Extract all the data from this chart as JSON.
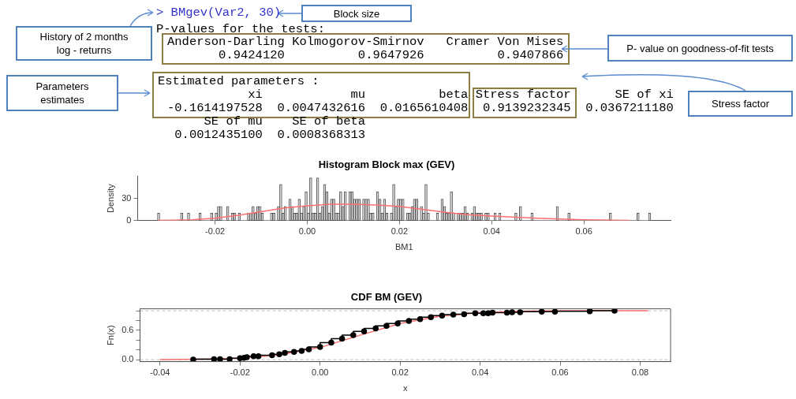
{
  "chart_data": [
    {
      "type": "other",
      "annotations": [
        "> BMgev(Var2, 30)",
        "P-values for the tests:",
        "Anderson-Darling Kolmogorov-Smirnov   Cramer Von Mises",
        "       0.9424120          0.9647926          0.9407866",
        "Estimated parameters :",
        "           xi            mu          beta Stress factor      SE of xi",
        "-0.1614197528  0.0047432616  0.0165610408  0.9139232345  0.0367211180",
        "     SE of mu    SE of beta",
        " 0.0012435100  0.0008368313",
        "Block size",
        "History of 2 months log - returns",
        "P- value on goodness-of-fit tests",
        "Parameters estimates",
        "Stress factor"
      ]
    },
    {
      "type": "histogram",
      "title": "Histogram Block max (GEV)",
      "xlabel": "BM1",
      "ylabel": "Density",
      "color": "#d9d9d9",
      "xlim": [
        -0.0368,
        0.0788
      ],
      "xticks": [
        -0.02,
        {
          "value": 0,
          "label": "0.00"
        },
        0.02,
        0.04,
        0.06
      ],
      "ylim": [
        0,
        60
      ],
      "yticks": [
        0,
        30
      ],
      "bins": [
        -0.0325,
        -0.032,
        -0.0315,
        -0.031,
        -0.0305,
        -0.03,
        -0.0295,
        -0.029,
        -0.0285,
        -0.028,
        -0.0275,
        -0.027,
        -0.0265,
        -0.026,
        -0.0255,
        -0.025,
        -0.0245,
        -0.024,
        -0.0235,
        -0.023,
        -0.0225,
        -0.022,
        -0.0215,
        -0.021,
        -0.0205,
        -0.02,
        -0.0195,
        -0.019,
        -0.0185,
        -0.018,
        -0.0175,
        -0.017,
        -0.0165,
        -0.016,
        -0.0155,
        -0.015,
        -0.0145,
        -0.014,
        -0.0135,
        -0.013,
        -0.0125,
        -0.012,
        -0.0115,
        -0.011,
        -0.0105,
        -0.01,
        -0.0095,
        -0.009,
        -0.0085,
        -0.008,
        -0.0075,
        -0.007,
        -0.0065,
        -0.006,
        -0.0055,
        -0.005,
        -0.0045,
        -0.004,
        -0.0035,
        -0.003,
        -0.0025,
        -0.002,
        -0.0015,
        -0.001,
        -0.0005,
        0,
        0.0005,
        0.001,
        0.0015,
        0.002,
        0.0025,
        0.003,
        0.0035,
        0.004,
        0.0045,
        0.005,
        0.0055,
        0.006,
        0.0065,
        0.007,
        0.0075,
        0.008,
        0.0085,
        0.009,
        0.0095,
        0.01,
        0.0105,
        0.011,
        0.0115,
        0.012,
        0.0125,
        0.013,
        0.0135,
        0.014,
        0.0145,
        0.015,
        0.0155,
        0.016,
        0.0165,
        0.017,
        0.0175,
        0.018,
        0.0185,
        0.019,
        0.0195,
        0.02,
        0.0205,
        0.021,
        0.0215,
        0.022,
        0.0225,
        0.023,
        0.0235,
        0.024,
        0.0245,
        0.025,
        0.0255,
        0.026,
        0.0265,
        0.027,
        0.0275,
        0.028,
        0.0285,
        0.029,
        0.0295,
        0.03,
        0.0305,
        0.031,
        0.0315,
        0.032,
        0.0325,
        0.033,
        0.0335,
        0.034,
        0.0345,
        0.035,
        0.0355,
        0.036,
        0.0365,
        0.037,
        0.0375,
        0.038,
        0.0385,
        0.039,
        0.0395,
        0.04,
        0.0405,
        0.041,
        0.0415,
        0.042,
        0.0425,
        0.043,
        0.0435,
        0.044,
        0.0445,
        0.045,
        0.0455,
        0.046,
        0.0465,
        0.047,
        0.0475,
        0.048,
        0.0485,
        0.049,
        0.0495,
        0.05,
        0.0505,
        0.051,
        0.0515,
        0.052,
        0.0525,
        0.053,
        0.0535,
        0.054,
        0.0545,
        0.055,
        0.0555,
        0.056,
        0.0565,
        0.057,
        0.0575,
        0.058,
        0.0585,
        0.059,
        0.0595,
        0.06,
        0.0605,
        0.061,
        0.0615,
        0.062,
        0.0625,
        0.063,
        0.0635,
        0.064,
        0.0645,
        0.065,
        0.0655,
        0.066,
        0.0665,
        0.067,
        0.0675,
        0.068,
        0.0685,
        0.069,
        0.0695,
        0.07,
        0.0705,
        0.071,
        0.0715,
        0.072,
        0.0725,
        0.073,
        0.0735,
        0.074,
        0.0745
      ],
      "values": [
        10,
        0,
        0,
        0,
        0,
        0,
        0,
        0,
        0,
        0,
        10,
        0,
        0,
        10,
        0,
        0,
        0,
        0,
        10,
        0,
        0,
        0,
        0,
        10,
        0,
        10,
        19,
        19,
        0,
        0,
        19,
        0,
        10,
        10,
        0,
        10,
        0,
        0,
        0,
        10,
        10,
        19,
        10,
        19,
        19,
        10,
        0,
        0,
        0,
        10,
        10,
        0,
        19,
        49,
        10,
        19,
        0,
        29,
        19,
        10,
        10,
        29,
        10,
        19,
        39,
        10,
        58,
        10,
        10,
        58,
        10,
        19,
        49,
        39,
        10,
        29,
        29,
        10,
        10,
        39,
        19,
        39,
        0,
        39,
        39,
        29,
        29,
        29,
        0,
        29,
        29,
        29,
        10,
        10,
        0,
        39,
        29,
        10,
        29,
        10,
        0,
        10,
        49,
        19,
        29,
        29,
        29,
        0,
        10,
        10,
        19,
        29,
        29,
        0,
        19,
        10,
        49,
        10,
        0,
        0,
        0,
        10,
        0,
        29,
        19,
        10,
        10,
        39,
        10,
        0,
        10,
        10,
        10,
        19,
        10,
        0,
        10,
        19,
        10,
        10,
        10,
        0,
        10,
        10,
        0,
        0,
        10,
        0,
        10,
        0,
        0,
        0,
        0,
        0,
        0,
        10,
        0,
        19,
        0,
        0,
        0,
        0,
        10,
        0,
        0,
        0,
        0,
        0,
        0,
        0,
        0,
        0,
        0,
        19,
        0,
        0,
        0,
        0,
        10,
        0,
        0,
        0,
        0,
        0,
        0,
        0,
        0,
        0,
        0,
        0,
        0,
        0,
        0,
        0,
        0,
        0,
        10,
        0,
        0,
        0,
        0,
        0,
        0,
        0,
        0,
        0,
        0,
        0,
        10,
        0,
        0,
        0,
        0,
        10
      ],
      "series": [
        {
          "type": "line",
          "color": "#ff7070",
          "x": [
            -0.0325,
            -0.025,
            -0.02,
            -0.015,
            -0.01,
            -0.005,
            0,
            0.005,
            0.01,
            0.015,
            0.02,
            0.025,
            0.03,
            0.035,
            0.04,
            0.05,
            0.06,
            0.07
          ],
          "values": [
            0,
            1,
            3,
            7,
            12,
            17,
            20,
            22,
            22,
            21,
            19,
            15,
            11,
            8,
            6,
            3,
            1,
            0
          ]
        }
      ]
    },
    {
      "type": "step",
      "title": "CDF BM (GEV)",
      "xlabel": "x",
      "ylabel": "Fn(x)",
      "xlim": [
        -0.045,
        0.0876
      ],
      "xticks": [
        -0.04,
        -0.02,
        {
          "value": 0,
          "label": "0.00"
        },
        0.02,
        0.04,
        0.06,
        0.08
      ],
      "ylim": [
        -0.04,
        1.04
      ],
      "yticks": [
        {
          "value": 0,
          "label": "0.0"
        },
        {
          "value": 0.2,
          "label": null
        },
        {
          "value": 0.4,
          "label": null
        },
        0.6,
        {
          "value": 0.8,
          "label": null
        },
        {
          "value": 1,
          "label": null
        }
      ],
      "ref_lines": [
        {
          "axis": "y",
          "value": 0,
          "color": "#bfbfbf",
          "line_style": "dashed"
        },
        {
          "axis": "y",
          "value": 1,
          "color": "#bfbfbf",
          "line_style": "dashed"
        }
      ],
      "series": [
        {
          "type": "line",
          "color": "#ff7070",
          "x": [
            -0.04,
            -0.03,
            -0.02,
            -0.01,
            0,
            0.01,
            0.02,
            0.03,
            0.04,
            0.05,
            0.06,
            0.082
          ],
          "values": [
            0,
            0.01,
            0.03,
            0.1,
            0.25,
            0.5,
            0.74,
            0.89,
            0.96,
            0.99,
            1,
            1
          ]
        },
        {
          "color": "#000000",
          "marker": "circle",
          "x": [
            -0.0317,
            -0.0265,
            -0.025,
            -0.0226,
            -0.02,
            -0.019,
            -0.0183,
            -0.0166,
            -0.0154,
            -0.012,
            -0.0102,
            -0.0088,
            -0.0065,
            -0.0046,
            -0.0028,
            0,
            0.0028,
            0.0055,
            0.0083,
            0.011,
            0.0139,
            0.0166,
            0.0194,
            0.0222,
            0.025,
            0.0277,
            0.0305,
            0.0333,
            0.036,
            0.0388,
            0.0408,
            0.042,
            0.0431,
            0.0467,
            0.048,
            0.05,
            0.0554,
            0.0587,
            0.0674,
            0.0736
          ],
          "values": [
            0,
            0.01,
            0.01,
            0.01,
            0.03,
            0.04,
            0.05,
            0.07,
            0.07,
            0.09,
            0.11,
            0.14,
            0.16,
            0.18,
            0.21,
            0.26,
            0.35,
            0.43,
            0.5,
            0.58,
            0.64,
            0.69,
            0.74,
            0.79,
            0.83,
            0.87,
            0.9,
            0.92,
            0.93,
            0.95,
            0.95,
            0.95,
            0.96,
            0.96,
            0.97,
            0.97,
            0.98,
            0.98,
            0.99,
            1
          ]
        }
      ]
    }
  ]
}
